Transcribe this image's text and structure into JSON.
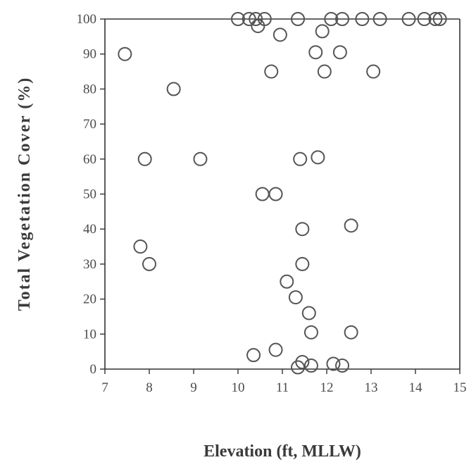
{
  "chart_data": {
    "type": "scatter",
    "title": "",
    "xlabel": "Elevation (ft, MLLW)",
    "ylabel": "Total Vegetation Cover (%)",
    "xlim": [
      7,
      15
    ],
    "ylim": [
      0,
      100
    ],
    "xticks": [
      "7",
      "8",
      "9",
      "10",
      "11",
      "12",
      "13",
      "14",
      "15"
    ],
    "yticks": [
      "0",
      "10",
      "20",
      "30",
      "40",
      "50",
      "60",
      "70",
      "80",
      "90",
      "100"
    ],
    "grid": false,
    "series": [
      {
        "points": [
          {
            "x": 10.0,
            "y": 100
          },
          {
            "x": 10.25,
            "y": 100
          },
          {
            "x": 10.4,
            "y": 100
          },
          {
            "x": 10.6,
            "y": 100
          },
          {
            "x": 11.35,
            "y": 100
          },
          {
            "x": 12.1,
            "y": 100
          },
          {
            "x": 12.35,
            "y": 100
          },
          {
            "x": 12.8,
            "y": 100
          },
          {
            "x": 13.2,
            "y": 100
          },
          {
            "x": 13.85,
            "y": 100
          },
          {
            "x": 14.2,
            "y": 100
          },
          {
            "x": 14.45,
            "y": 100
          },
          {
            "x": 14.55,
            "y": 100
          },
          {
            "x": 10.45,
            "y": 98
          },
          {
            "x": 11.9,
            "y": 96.5
          },
          {
            "x": 10.95,
            "y": 95.5
          },
          {
            "x": 7.45,
            "y": 90
          },
          {
            "x": 11.75,
            "y": 90.5
          },
          {
            "x": 12.3,
            "y": 90.5
          },
          {
            "x": 10.75,
            "y": 85
          },
          {
            "x": 11.95,
            "y": 85
          },
          {
            "x": 13.05,
            "y": 85
          },
          {
            "x": 8.55,
            "y": 80
          },
          {
            "x": 7.9,
            "y": 60
          },
          {
            "x": 9.15,
            "y": 60
          },
          {
            "x": 11.4,
            "y": 60
          },
          {
            "x": 11.8,
            "y": 60.5
          },
          {
            "x": 10.55,
            "y": 50
          },
          {
            "x": 10.85,
            "y": 50
          },
          {
            "x": 11.45,
            "y": 40
          },
          {
            "x": 12.55,
            "y": 41
          },
          {
            "x": 7.8,
            "y": 35
          },
          {
            "x": 8.0,
            "y": 30
          },
          {
            "x": 11.45,
            "y": 30
          },
          {
            "x": 11.1,
            "y": 25
          },
          {
            "x": 11.3,
            "y": 20.5
          },
          {
            "x": 11.6,
            "y": 16
          },
          {
            "x": 11.65,
            "y": 10.5
          },
          {
            "x": 12.55,
            "y": 10.5
          },
          {
            "x": 10.85,
            "y": 5.5
          },
          {
            "x": 10.35,
            "y": 4
          },
          {
            "x": 11.45,
            "y": 2
          },
          {
            "x": 11.35,
            "y": 0.5
          },
          {
            "x": 11.65,
            "y": 1
          },
          {
            "x": 12.15,
            "y": 1.5
          },
          {
            "x": 12.35,
            "y": 1
          }
        ]
      }
    ],
    "colors": {
      "marker": "#555555",
      "axis": "#333333",
      "text": "#4a4a4a"
    }
  }
}
